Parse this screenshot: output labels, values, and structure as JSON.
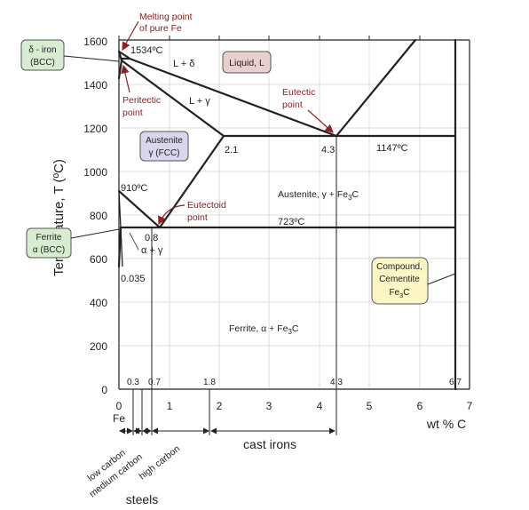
{
  "axes": {
    "y_label": "Temperature, T (ºC)",
    "y_ticks": [
      "0",
      "200",
      "400",
      "600",
      "800",
      "1000",
      "1200",
      "1400",
      "1600"
    ],
    "x_ticks": [
      "0",
      "1",
      "2",
      "3",
      "4",
      "5",
      "6",
      "7"
    ],
    "x_unit": "wt % C",
    "x_origin_sub": "Fe",
    "top_ticks": [
      "0.3",
      "0.7",
      "1.8",
      "4.3",
      "6.7"
    ]
  },
  "callouts": {
    "melting_point": [
      "Melting point",
      "of pure Fe"
    ],
    "delta_iron": [
      "δ - iron",
      "(BCC)"
    ],
    "ferrite": [
      "Ferrite",
      "α (BCC)"
    ],
    "austenite": [
      "Austenite",
      "γ (FCC)"
    ],
    "liquid": "Liquid, L",
    "compound": [
      "Compound,",
      "Cementite",
      "Fe",
      "3",
      "C"
    ]
  },
  "labels": {
    "t_1534": "1534ºC",
    "l_delta": "L + δ",
    "l_gamma": "L + γ",
    "peritectic": [
      "Peritectic",
      "point"
    ],
    "eutectic": [
      "Eutectic",
      "point"
    ],
    "c_2_1": "2.1",
    "c_4_3": "4.3",
    "t_1147": "1147ºC",
    "t_910": "910ºC",
    "eutectoid": [
      "Eutectoid",
      "point"
    ],
    "austenite_fe3c": [
      "Austenite, γ + Fe",
      "3",
      "C"
    ],
    "t_723": "723ºC",
    "c_0_8": "0.8",
    "alpha_gamma": "α + γ",
    "c_0_035": "0.035",
    "ferrite_fe3c": [
      "Ferrite, α + Fe",
      "3",
      "C"
    ]
  },
  "regions": {
    "low_carbon": "low carbon",
    "medium_carbon": "medium carbon",
    "high_carbon": "high carbon",
    "cast_irons": "cast irons",
    "steels": "steels"
  },
  "colors": {
    "callout_green": "#d8ecd2",
    "callout_purple": "#d9d5ec",
    "callout_pink": "#e9cfd0",
    "callout_yellow": "#fbf6c4",
    "annotation_red": "#8b2020",
    "grid": "#dcdcdc"
  }
}
